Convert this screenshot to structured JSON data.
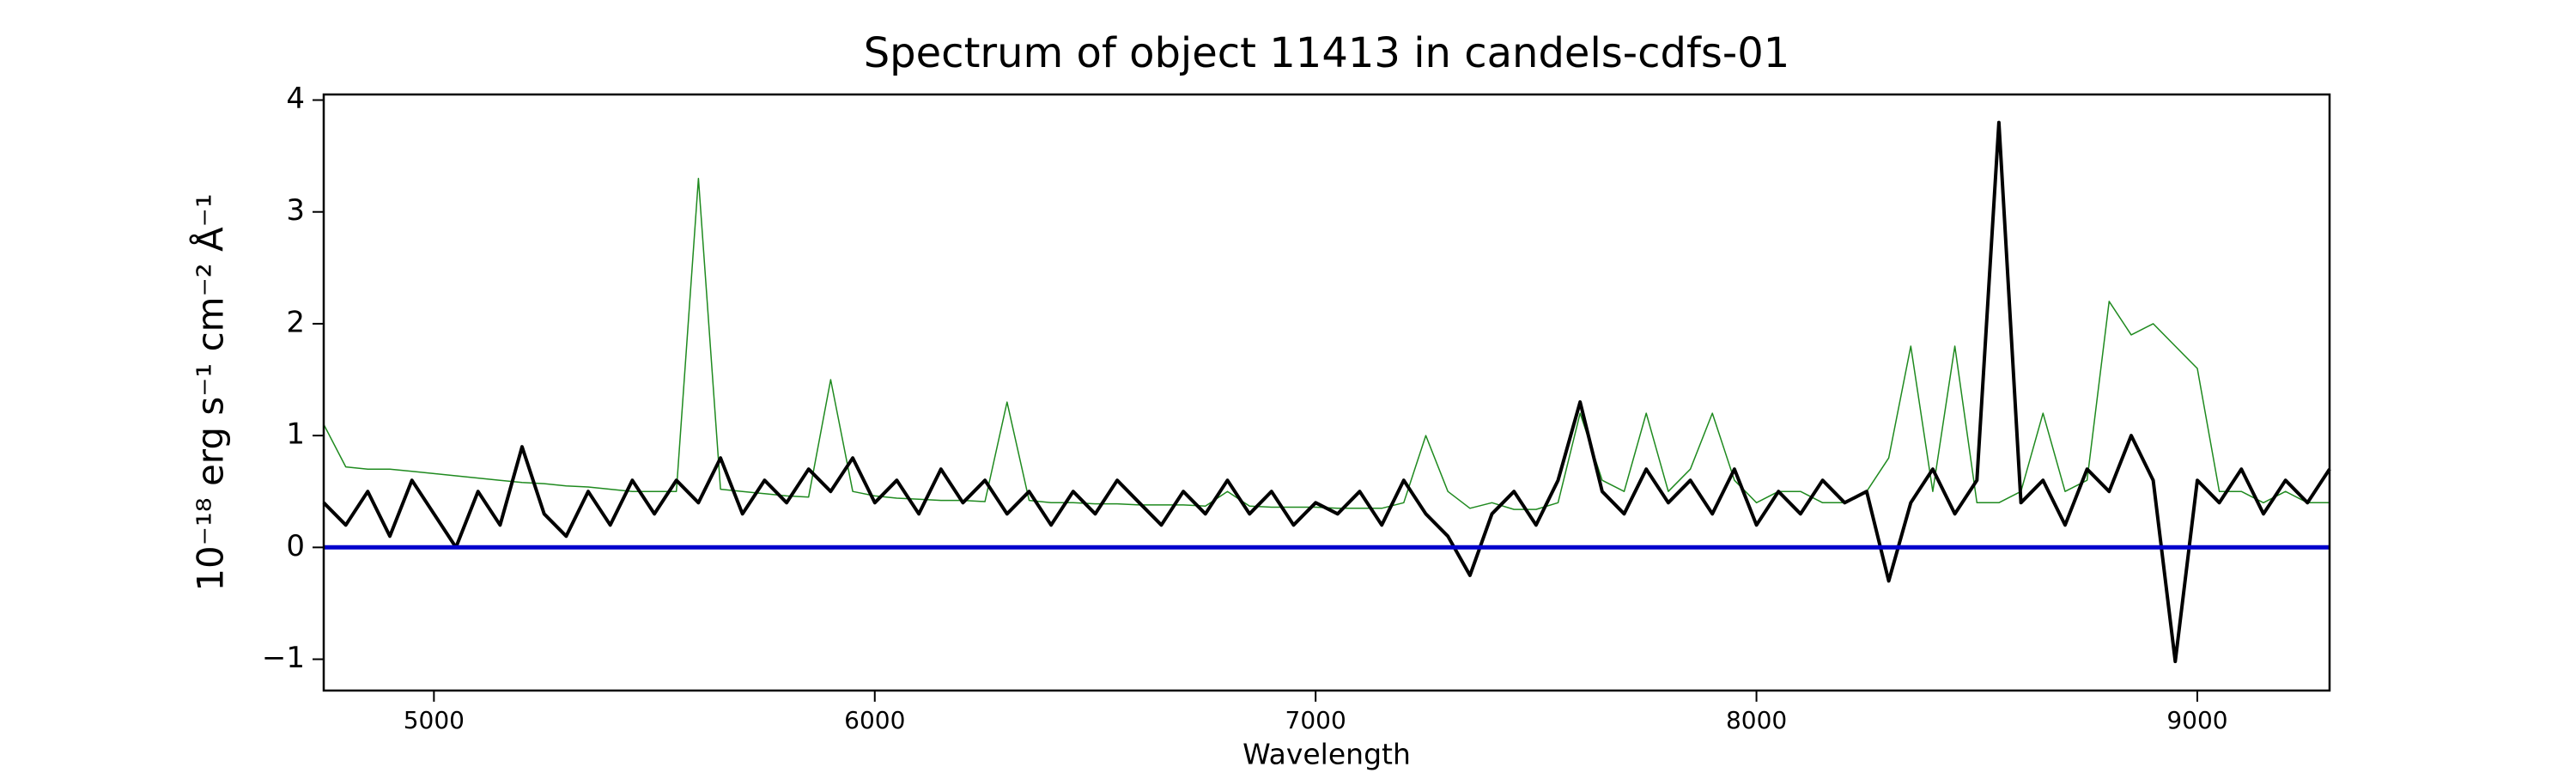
{
  "chart_data": {
    "type": "line",
    "title": "Spectrum of object 11413 in candels-cdfs-01",
    "xlabel": "Wavelength",
    "ylabel": "10⁻¹⁸ erg s⁻¹ cm⁻² Å⁻¹",
    "xlim": [
      4750,
      9300
    ],
    "ylim": [
      -1.28,
      4.05
    ],
    "xticks": [
      5000,
      6000,
      7000,
      8000,
      9000
    ],
    "yticks": [
      {
        "value": -1,
        "label": "−1"
      },
      0,
      1,
      2,
      3,
      4
    ],
    "series": [
      {
        "color": "#1f8a1f",
        "width": 1.5,
        "x": [
          4750,
          4800,
          4850,
          4900,
          4950,
          5000,
          5050,
          5100,
          5150,
          5200,
          5250,
          5300,
          5350,
          5400,
          5450,
          5500,
          5550,
          5600,
          5650,
          5700,
          5750,
          5800,
          5850,
          5900,
          5950,
          6000,
          6050,
          6100,
          6150,
          6200,
          6250,
          6300,
          6350,
          6400,
          6450,
          6500,
          6550,
          6600,
          6650,
          6700,
          6750,
          6800,
          6850,
          6900,
          6950,
          7000,
          7050,
          7100,
          7150,
          7200,
          7250,
          7300,
          7350,
          7400,
          7450,
          7500,
          7550,
          7600,
          7650,
          7700,
          7750,
          7800,
          7850,
          7900,
          7950,
          8000,
          8050,
          8100,
          8150,
          8200,
          8250,
          8300,
          8350,
          8400,
          8450,
          8500,
          8550,
          8600,
          8650,
          8700,
          8750,
          8800,
          8850,
          8900,
          8950,
          9000,
          9050,
          9100,
          9150,
          9200,
          9250,
          9300
        ],
        "values": [
          1.1,
          0.72,
          0.7,
          0.7,
          0.68,
          0.66,
          0.64,
          0.62,
          0.6,
          0.58,
          0.57,
          0.55,
          0.54,
          0.52,
          0.5,
          0.5,
          0.5,
          3.3,
          0.52,
          0.5,
          0.48,
          0.46,
          0.45,
          1.5,
          0.5,
          0.46,
          0.44,
          0.43,
          0.42,
          0.42,
          0.41,
          1.3,
          0.42,
          0.4,
          0.4,
          0.39,
          0.39,
          0.38,
          0.38,
          0.38,
          0.37,
          0.5,
          0.37,
          0.36,
          0.36,
          0.36,
          0.35,
          0.35,
          0.35,
          0.4,
          1.0,
          0.5,
          0.35,
          0.4,
          0.34,
          0.34,
          0.4,
          1.2,
          0.6,
          0.5,
          1.2,
          0.5,
          0.7,
          1.2,
          0.6,
          0.4,
          0.5,
          0.5,
          0.4,
          0.4,
          0.5,
          0.8,
          1.8,
          0.5,
          1.8,
          0.4,
          0.4,
          0.5,
          1.2,
          0.5,
          0.6,
          2.2,
          1.9,
          2.0,
          1.8,
          1.6,
          0.5,
          0.5,
          0.4,
          0.5,
          0.4,
          0.4
        ]
      },
      {
        "color": "#000000",
        "width": 4,
        "x": [
          4750,
          4800,
          4850,
          4900,
          4950,
          5000,
          5050,
          5100,
          5150,
          5200,
          5250,
          5300,
          5350,
          5400,
          5450,
          5500,
          5550,
          5600,
          5650,
          5700,
          5750,
          5800,
          5850,
          5900,
          5950,
          6000,
          6050,
          6100,
          6150,
          6200,
          6250,
          6300,
          6350,
          6400,
          6450,
          6500,
          6550,
          6600,
          6650,
          6700,
          6750,
          6800,
          6850,
          6900,
          6950,
          7000,
          7050,
          7100,
          7150,
          7200,
          7250,
          7300,
          7350,
          7400,
          7450,
          7500,
          7550,
          7600,
          7650,
          7700,
          7750,
          7800,
          7850,
          7900,
          7950,
          8000,
          8050,
          8100,
          8150,
          8200,
          8250,
          8300,
          8350,
          8400,
          8450,
          8500,
          8550,
          8600,
          8650,
          8700,
          8750,
          8800,
          8850,
          8900,
          8950,
          9000,
          9050,
          9100,
          9150,
          9200,
          9250,
          9300
        ],
        "values": [
          0.4,
          0.2,
          0.5,
          0.1,
          0.6,
          0.3,
          0.0,
          0.5,
          0.2,
          0.9,
          0.3,
          0.1,
          0.5,
          0.2,
          0.6,
          0.3,
          0.6,
          0.4,
          0.8,
          0.3,
          0.6,
          0.4,
          0.7,
          0.5,
          0.8,
          0.4,
          0.6,
          0.3,
          0.7,
          0.4,
          0.6,
          0.3,
          0.5,
          0.2,
          0.5,
          0.3,
          0.6,
          0.4,
          0.2,
          0.5,
          0.3,
          0.6,
          0.3,
          0.5,
          0.2,
          0.4,
          0.3,
          0.5,
          0.2,
          0.6,
          0.3,
          0.1,
          -0.25,
          0.3,
          0.5,
          0.2,
          0.6,
          1.3,
          0.5,
          0.3,
          0.7,
          0.4,
          0.6,
          0.3,
          0.7,
          0.2,
          0.5,
          0.3,
          0.6,
          0.4,
          0.5,
          -0.3,
          0.4,
          0.7,
          0.3,
          0.6,
          3.8,
          0.4,
          0.6,
          0.2,
          0.7,
          0.5,
          1.0,
          0.6,
          -1.02,
          0.6,
          0.4,
          0.7,
          0.3,
          0.6,
          0.4,
          0.7
        ]
      },
      {
        "color": "#0000cc",
        "width": 5,
        "x": [
          4750,
          9300
        ],
        "values": [
          0,
          0
        ]
      }
    ]
  }
}
